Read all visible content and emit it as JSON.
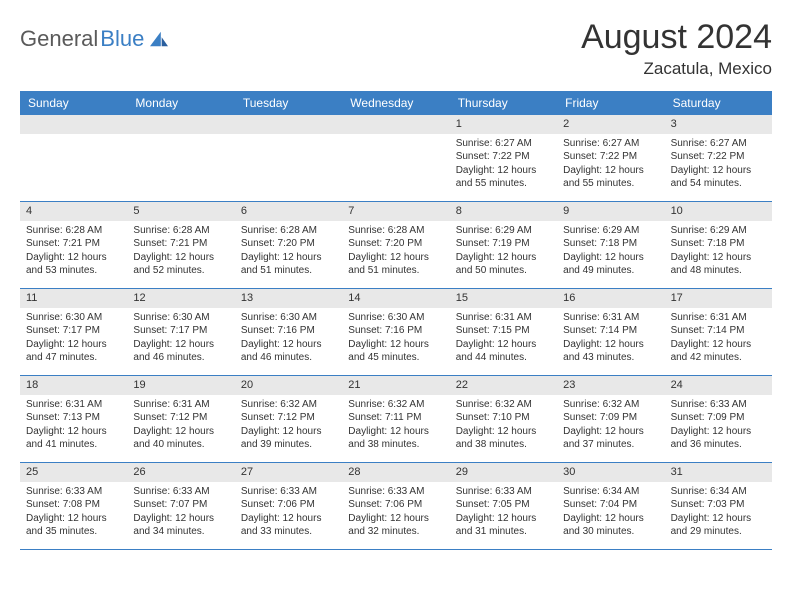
{
  "brand": {
    "name_part1": "General",
    "name_part2": "Blue"
  },
  "header": {
    "title": "August 2024",
    "location": "Zacatula, Mexico"
  },
  "colors": {
    "header_bg": "#3b7fc4",
    "daynum_bg": "#e8e8e8",
    "text": "#333333",
    "border": "#3b7fc4"
  },
  "day_names": [
    "Sunday",
    "Monday",
    "Tuesday",
    "Wednesday",
    "Thursday",
    "Friday",
    "Saturday"
  ],
  "weeks": [
    [
      {
        "empty": true
      },
      {
        "empty": true
      },
      {
        "empty": true
      },
      {
        "empty": true
      },
      {
        "day": "1",
        "sunrise": "Sunrise: 6:27 AM",
        "sunset": "Sunset: 7:22 PM",
        "daylight": "Daylight: 12 hours and 55 minutes."
      },
      {
        "day": "2",
        "sunrise": "Sunrise: 6:27 AM",
        "sunset": "Sunset: 7:22 PM",
        "daylight": "Daylight: 12 hours and 55 minutes."
      },
      {
        "day": "3",
        "sunrise": "Sunrise: 6:27 AM",
        "sunset": "Sunset: 7:22 PM",
        "daylight": "Daylight: 12 hours and 54 minutes."
      }
    ],
    [
      {
        "day": "4",
        "sunrise": "Sunrise: 6:28 AM",
        "sunset": "Sunset: 7:21 PM",
        "daylight": "Daylight: 12 hours and 53 minutes."
      },
      {
        "day": "5",
        "sunrise": "Sunrise: 6:28 AM",
        "sunset": "Sunset: 7:21 PM",
        "daylight": "Daylight: 12 hours and 52 minutes."
      },
      {
        "day": "6",
        "sunrise": "Sunrise: 6:28 AM",
        "sunset": "Sunset: 7:20 PM",
        "daylight": "Daylight: 12 hours and 51 minutes."
      },
      {
        "day": "7",
        "sunrise": "Sunrise: 6:28 AM",
        "sunset": "Sunset: 7:20 PM",
        "daylight": "Daylight: 12 hours and 51 minutes."
      },
      {
        "day": "8",
        "sunrise": "Sunrise: 6:29 AM",
        "sunset": "Sunset: 7:19 PM",
        "daylight": "Daylight: 12 hours and 50 minutes."
      },
      {
        "day": "9",
        "sunrise": "Sunrise: 6:29 AM",
        "sunset": "Sunset: 7:18 PM",
        "daylight": "Daylight: 12 hours and 49 minutes."
      },
      {
        "day": "10",
        "sunrise": "Sunrise: 6:29 AM",
        "sunset": "Sunset: 7:18 PM",
        "daylight": "Daylight: 12 hours and 48 minutes."
      }
    ],
    [
      {
        "day": "11",
        "sunrise": "Sunrise: 6:30 AM",
        "sunset": "Sunset: 7:17 PM",
        "daylight": "Daylight: 12 hours and 47 minutes."
      },
      {
        "day": "12",
        "sunrise": "Sunrise: 6:30 AM",
        "sunset": "Sunset: 7:17 PM",
        "daylight": "Daylight: 12 hours and 46 minutes."
      },
      {
        "day": "13",
        "sunrise": "Sunrise: 6:30 AM",
        "sunset": "Sunset: 7:16 PM",
        "daylight": "Daylight: 12 hours and 46 minutes."
      },
      {
        "day": "14",
        "sunrise": "Sunrise: 6:30 AM",
        "sunset": "Sunset: 7:16 PM",
        "daylight": "Daylight: 12 hours and 45 minutes."
      },
      {
        "day": "15",
        "sunrise": "Sunrise: 6:31 AM",
        "sunset": "Sunset: 7:15 PM",
        "daylight": "Daylight: 12 hours and 44 minutes."
      },
      {
        "day": "16",
        "sunrise": "Sunrise: 6:31 AM",
        "sunset": "Sunset: 7:14 PM",
        "daylight": "Daylight: 12 hours and 43 minutes."
      },
      {
        "day": "17",
        "sunrise": "Sunrise: 6:31 AM",
        "sunset": "Sunset: 7:14 PM",
        "daylight": "Daylight: 12 hours and 42 minutes."
      }
    ],
    [
      {
        "day": "18",
        "sunrise": "Sunrise: 6:31 AM",
        "sunset": "Sunset: 7:13 PM",
        "daylight": "Daylight: 12 hours and 41 minutes."
      },
      {
        "day": "19",
        "sunrise": "Sunrise: 6:31 AM",
        "sunset": "Sunset: 7:12 PM",
        "daylight": "Daylight: 12 hours and 40 minutes."
      },
      {
        "day": "20",
        "sunrise": "Sunrise: 6:32 AM",
        "sunset": "Sunset: 7:12 PM",
        "daylight": "Daylight: 12 hours and 39 minutes."
      },
      {
        "day": "21",
        "sunrise": "Sunrise: 6:32 AM",
        "sunset": "Sunset: 7:11 PM",
        "daylight": "Daylight: 12 hours and 38 minutes."
      },
      {
        "day": "22",
        "sunrise": "Sunrise: 6:32 AM",
        "sunset": "Sunset: 7:10 PM",
        "daylight": "Daylight: 12 hours and 38 minutes."
      },
      {
        "day": "23",
        "sunrise": "Sunrise: 6:32 AM",
        "sunset": "Sunset: 7:09 PM",
        "daylight": "Daylight: 12 hours and 37 minutes."
      },
      {
        "day": "24",
        "sunrise": "Sunrise: 6:33 AM",
        "sunset": "Sunset: 7:09 PM",
        "daylight": "Daylight: 12 hours and 36 minutes."
      }
    ],
    [
      {
        "day": "25",
        "sunrise": "Sunrise: 6:33 AM",
        "sunset": "Sunset: 7:08 PM",
        "daylight": "Daylight: 12 hours and 35 minutes."
      },
      {
        "day": "26",
        "sunrise": "Sunrise: 6:33 AM",
        "sunset": "Sunset: 7:07 PM",
        "daylight": "Daylight: 12 hours and 34 minutes."
      },
      {
        "day": "27",
        "sunrise": "Sunrise: 6:33 AM",
        "sunset": "Sunset: 7:06 PM",
        "daylight": "Daylight: 12 hours and 33 minutes."
      },
      {
        "day": "28",
        "sunrise": "Sunrise: 6:33 AM",
        "sunset": "Sunset: 7:06 PM",
        "daylight": "Daylight: 12 hours and 32 minutes."
      },
      {
        "day": "29",
        "sunrise": "Sunrise: 6:33 AM",
        "sunset": "Sunset: 7:05 PM",
        "daylight": "Daylight: 12 hours and 31 minutes."
      },
      {
        "day": "30",
        "sunrise": "Sunrise: 6:34 AM",
        "sunset": "Sunset: 7:04 PM",
        "daylight": "Daylight: 12 hours and 30 minutes."
      },
      {
        "day": "31",
        "sunrise": "Sunrise: 6:34 AM",
        "sunset": "Sunset: 7:03 PM",
        "daylight": "Daylight: 12 hours and 29 minutes."
      }
    ]
  ]
}
